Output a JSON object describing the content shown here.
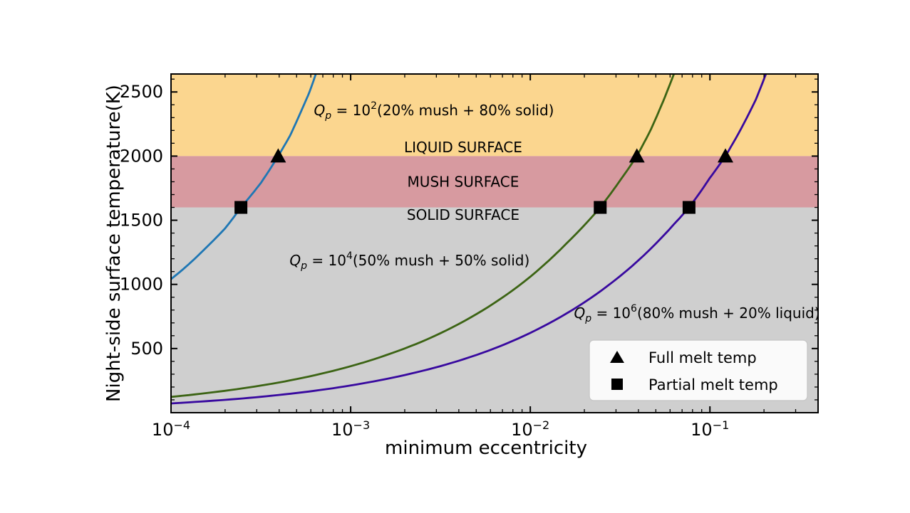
{
  "chart_data": {
    "type": "line",
    "title": "",
    "xlabel": "minimum eccentricity",
    "ylabel": "Night-side surface temperature(K)",
    "x_scale": "log",
    "x_range": [
      0.0001,
      0.4
    ],
    "y_range": [
      0,
      2640
    ],
    "grid": false,
    "x_major_ticks": [
      {
        "value": 0.0001,
        "mantissa": "10",
        "exponent": "−4"
      },
      {
        "value": 0.001,
        "mantissa": "10",
        "exponent": "−3"
      },
      {
        "value": 0.01,
        "mantissa": "10",
        "exponent": "−2"
      },
      {
        "value": 0.1,
        "mantissa": "10",
        "exponent": "−1"
      }
    ],
    "y_major_ticks": [
      500,
      1000,
      1500,
      2000,
      2500
    ],
    "y_minor_step": 100,
    "regions": [
      {
        "id": "liquid",
        "label": "LIQUID SURFACE",
        "from": 2000,
        "to": 2640,
        "color": "#fbd68f",
        "label_e": 0.00423,
        "label_T": 2069
      },
      {
        "id": "mush",
        "label": "MUSH SURFACE",
        "from": 1600,
        "to": 2000,
        "color": "#d79aa0",
        "label_e": 0.00423,
        "label_T": 1800
      },
      {
        "id": "solid",
        "label": "SOLID SURFACE",
        "from": 0,
        "to": 1600,
        "color": "#cfcfcf",
        "label_e": 0.00423,
        "label_T": 1542
      }
    ],
    "series": [
      {
        "id": "qp-1e2",
        "name": "Qp = 10^2 (20% mush + 80% solid)",
        "color": "#1f77b4",
        "label_segments": [
          [
            "Q",
            "i"
          ],
          [
            "p",
            "sub"
          ],
          [
            " = 10",
            ""
          ],
          [
            "2",
            "sup"
          ],
          [
            "(20% mush + 80% solid)",
            ""
          ]
        ],
        "label_anchor": {
          "e": 0.00291,
          "T": 2357
        },
        "full_melt_e": 0.000395,
        "partial_melt_e": 0.000245,
        "points": [
          [
            0.0001,
            1041
          ],
          [
            0.000126,
            1159
          ],
          [
            0.000158,
            1291
          ],
          [
            0.0002,
            1437
          ],
          [
            0.000245,
            1600
          ],
          [
            0.000316,
            1790
          ],
          [
            0.000395,
            2000
          ],
          [
            0.00046,
            2160
          ],
          [
            0.00053,
            2350
          ],
          [
            0.00059,
            2500
          ],
          [
            0.00064,
            2640
          ]
        ]
      },
      {
        "id": "qp-1e4",
        "name": "Qp = 10^4 (50% mush + 50% solid)",
        "color": "#3c6414",
        "label_segments": [
          [
            "Q",
            "i"
          ],
          [
            "p",
            "sub"
          ],
          [
            " = 10",
            ""
          ],
          [
            "4",
            "sup"
          ],
          [
            "(50% mush + 50% solid)",
            ""
          ]
        ],
        "label_anchor": {
          "e": 0.00213,
          "T": 1187
        },
        "full_melt_e": 0.0392,
        "partial_melt_e": 0.0245,
        "points": [
          [
            0.0001,
            123
          ],
          [
            0.000158,
            153
          ],
          [
            0.000251,
            190
          ],
          [
            0.000398,
            235
          ],
          [
            0.000631,
            292
          ],
          [
            0.001,
            362
          ],
          [
            0.00158,
            449
          ],
          [
            0.00251,
            556
          ],
          [
            0.00398,
            690
          ],
          [
            0.00631,
            855
          ],
          [
            0.01,
            1060
          ],
          [
            0.0158,
            1315
          ],
          [
            0.0245,
            1600
          ],
          [
            0.0316,
            1810
          ],
          [
            0.0392,
            2000
          ],
          [
            0.047,
            2210
          ],
          [
            0.055,
            2430
          ],
          [
            0.063,
            2640
          ]
        ]
      },
      {
        "id": "qp-1e6",
        "name": "Qp = 10^6 (80% mush + 20% liquid)",
        "color": "#38099f",
        "label_segments": [
          [
            "Q",
            "i"
          ],
          [
            "p",
            "sub"
          ],
          [
            " = 10",
            ""
          ],
          [
            "6",
            "sup"
          ],
          [
            "(80% mush + 20% liquid)",
            ""
          ]
        ],
        "label_anchor": {
          "e": 0.0847,
          "T": 776
        },
        "full_melt_e": 0.122,
        "partial_melt_e": 0.0765,
        "points": [
          [
            0.0001,
            72
          ],
          [
            0.000158,
            90
          ],
          [
            0.000251,
            111
          ],
          [
            0.000398,
            138
          ],
          [
            0.000631,
            171
          ],
          [
            0.001,
            212
          ],
          [
            0.00158,
            263
          ],
          [
            0.00251,
            326
          ],
          [
            0.00398,
            404
          ],
          [
            0.00631,
            501
          ],
          [
            0.01,
            622
          ],
          [
            0.0158,
            771
          ],
          [
            0.0251,
            956
          ],
          [
            0.0398,
            1185
          ],
          [
            0.0631,
            1469
          ],
          [
            0.0765,
            1600
          ],
          [
            0.1,
            1830
          ],
          [
            0.122,
            2000
          ],
          [
            0.15,
            2220
          ],
          [
            0.18,
            2440
          ],
          [
            0.205,
            2640
          ]
        ]
      }
    ],
    "markers": {
      "full_melt": {
        "shape": "triangle",
        "T": 2000,
        "label": "Full melt temp"
      },
      "partial_melt": {
        "shape": "square",
        "T": 1600,
        "label": "Partial melt temp"
      }
    },
    "legend": {
      "position": "lower right",
      "facecolor": "#fafafa",
      "edgecolor": "#c9c9c9",
      "items": [
        {
          "marker": "triangle",
          "label": "Full melt temp"
        },
        {
          "marker": "square",
          "label": "Partial melt temp"
        }
      ]
    },
    "colors": {
      "axes": "#000000",
      "text": "#000000",
      "marker": "#000000"
    }
  }
}
